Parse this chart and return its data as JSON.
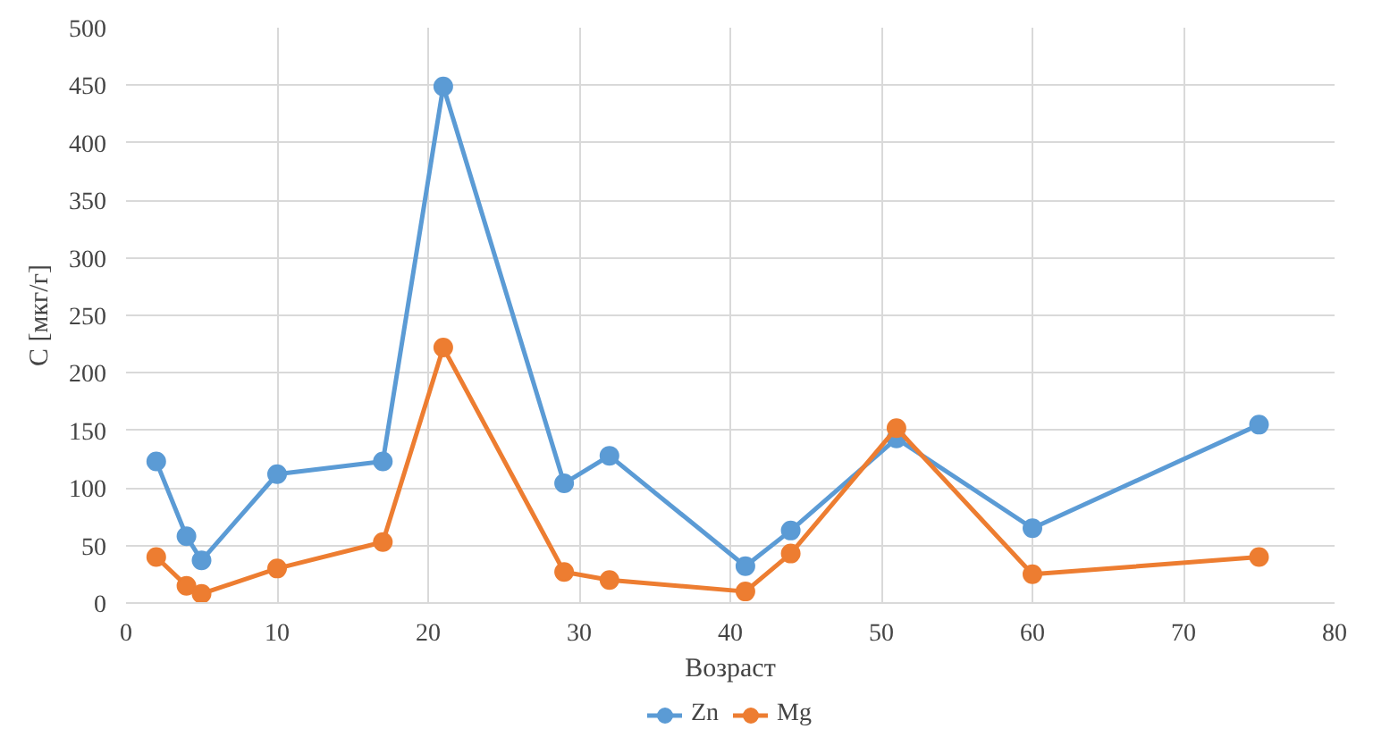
{
  "chart_data": {
    "type": "line",
    "xlabel": "Возраст",
    "ylabel": "C [мкг/г]",
    "x": [
      2,
      4,
      5,
      10,
      17,
      21,
      29,
      32,
      41,
      44,
      51,
      60,
      75
    ],
    "series": [
      {
        "name": "Zn",
        "color": "#5b9bd5",
        "values": [
          123,
          58,
          37,
          112,
          123,
          449,
          104,
          128,
          32,
          63,
          143,
          65,
          155
        ]
      },
      {
        "name": "Mg",
        "color": "#ed7d31",
        "values": [
          40,
          15,
          8,
          30,
          53,
          222,
          27,
          20,
          10,
          43,
          152,
          25,
          40
        ]
      }
    ],
    "xlim": [
      0,
      80
    ],
    "xticks": [
      0,
      10,
      20,
      30,
      40,
      50,
      60,
      70,
      80
    ],
    "ylim": [
      0,
      500
    ],
    "yticks": [
      0,
      50,
      100,
      150,
      200,
      250,
      300,
      350,
      400,
      450,
      500
    ],
    "grid": true,
    "legend": "bottom",
    "marker": "circle",
    "line_style": "solid"
  }
}
